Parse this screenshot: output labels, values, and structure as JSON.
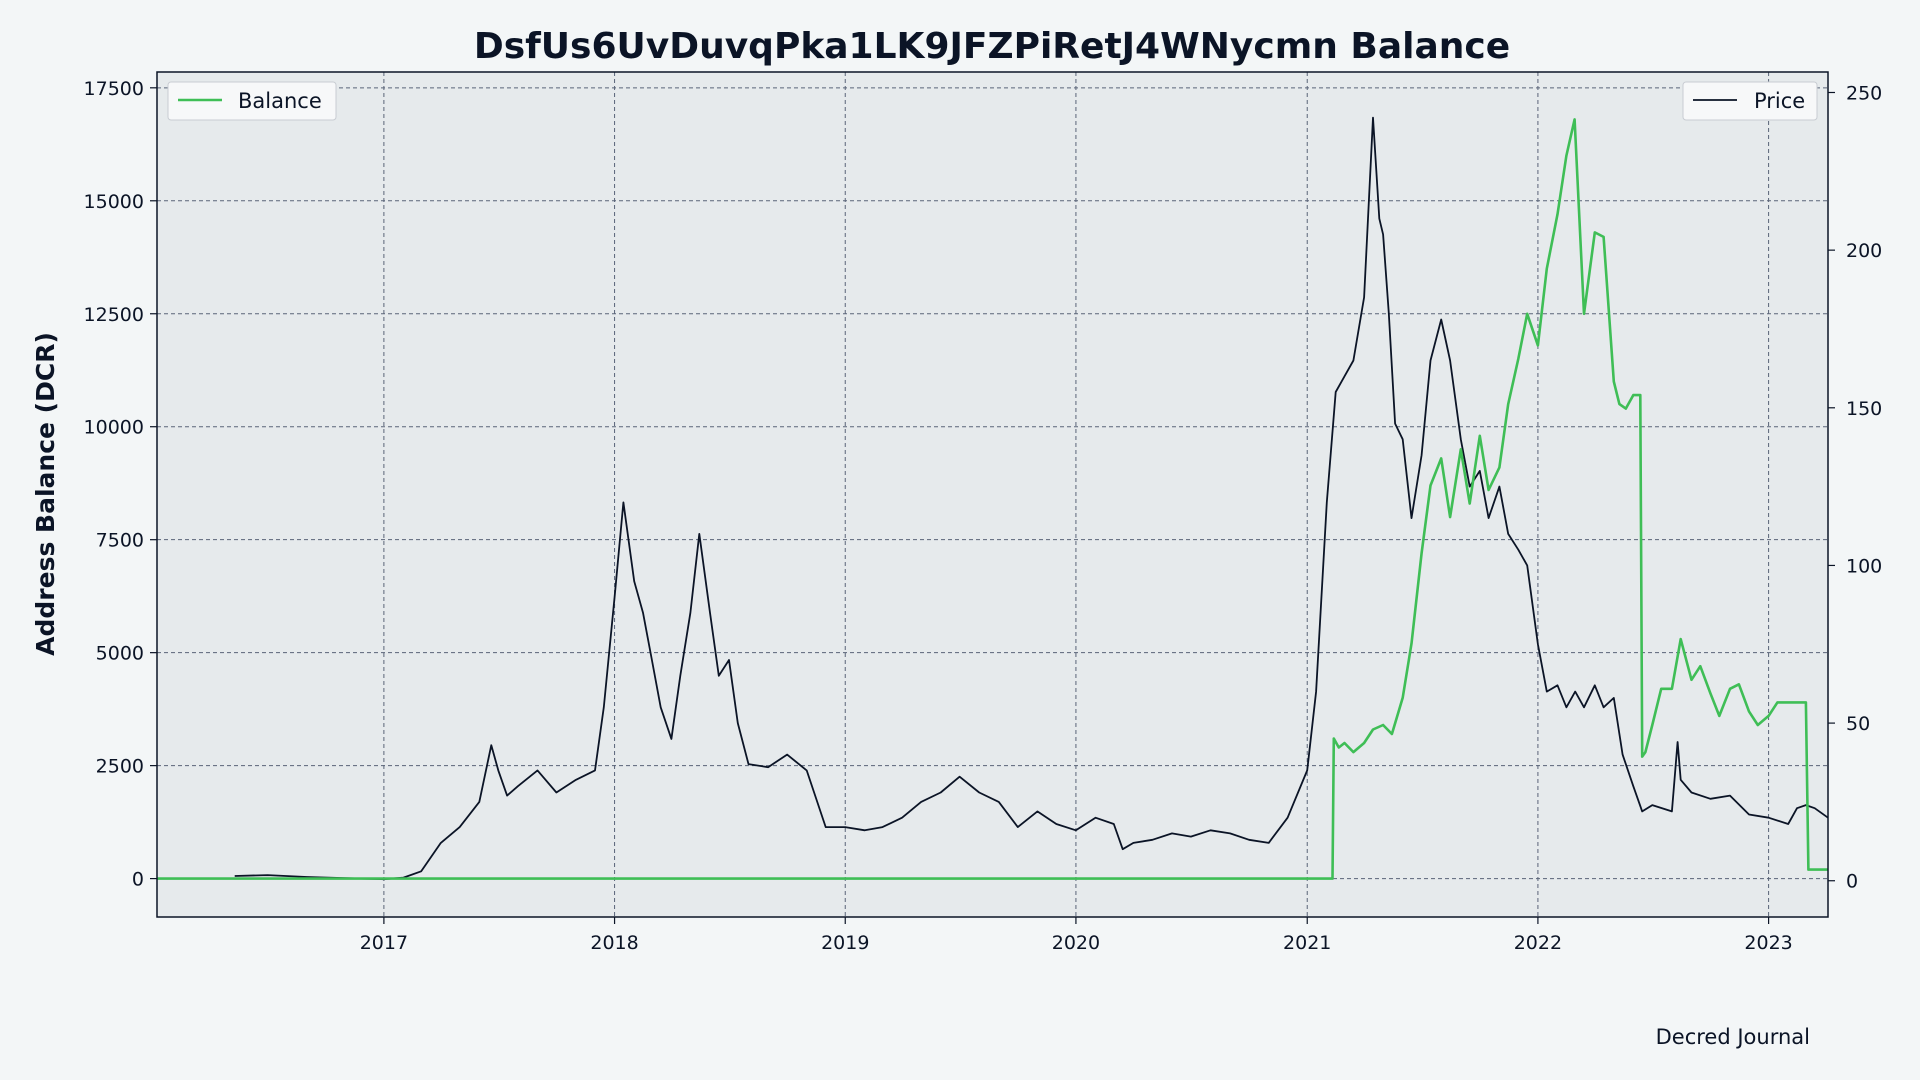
{
  "chart_data": {
    "type": "line",
    "title": "DsfUs6UvDuvqPka1LK9JFZPiRetJ4WNycmn Balance",
    "ylabel": "Address Balance (DCR)",
    "y2label": "",
    "footer": "Decred Journal",
    "xlim": [
      "2016-01-08",
      "2023-04-05"
    ],
    "ylim": [
      -850,
      17850
    ],
    "y2lim": [
      -11.5,
      256.5
    ],
    "x_ticks": [
      "2017",
      "2018",
      "2019",
      "2020",
      "2021",
      "2022",
      "2023"
    ],
    "y_ticks": [
      0,
      2500,
      5000,
      7500,
      10000,
      12500,
      15000,
      17500
    ],
    "y2_ticks": [
      0,
      50,
      100,
      150,
      200,
      250
    ],
    "grid": true,
    "legend": [
      {
        "name": "Balance",
        "placement": "top-left"
      },
      {
        "name": "Price",
        "placement": "top-right"
      }
    ],
    "colors": {
      "balance": "#3fbe56",
      "price": "#0b1426",
      "grid": "#5a6478",
      "plot_bg": "#e6eaec",
      "page_bg": "#f3f6f7"
    },
    "series": [
      {
        "name": "Balance",
        "axis": "left",
        "x": [
          "2016-01-08",
          "2021-02-10",
          "2021-02-12",
          "2021-02-20",
          "2021-03-01",
          "2021-03-15",
          "2021-04-01",
          "2021-04-15",
          "2021-05-01",
          "2021-05-15",
          "2021-06-01",
          "2021-06-15",
          "2021-07-01",
          "2021-07-15",
          "2021-08-01",
          "2021-08-15",
          "2021-09-01",
          "2021-09-15",
          "2021-10-01",
          "2021-10-15",
          "2021-11-01",
          "2021-11-15",
          "2021-12-01",
          "2021-12-15",
          "2022-01-01",
          "2022-01-15",
          "2022-02-01",
          "2022-02-15",
          "2022-02-28",
          "2022-03-15",
          "2022-04-01",
          "2022-04-15",
          "2022-05-01",
          "2022-05-10",
          "2022-05-20",
          "2022-06-01",
          "2022-06-12",
          "2022-06-15",
          "2022-06-20",
          "2022-07-01",
          "2022-07-15",
          "2022-08-01",
          "2022-08-15",
          "2022-09-01",
          "2022-09-15",
          "2022-10-01",
          "2022-10-15",
          "2022-11-01",
          "2022-11-15",
          "2022-12-01",
          "2022-12-15",
          "2023-01-01",
          "2023-01-15",
          "2023-02-01",
          "2023-02-20",
          "2023-03-01",
          "2023-03-05",
          "2023-04-05"
        ],
        "values": [
          0,
          0,
          3100,
          2900,
          3000,
          2800,
          3000,
          3300,
          3400,
          3200,
          4000,
          5200,
          7200,
          8700,
          9300,
          8000,
          9500,
          8300,
          9800,
          8600,
          9100,
          10500,
          11500,
          12500,
          11800,
          13500,
          14700,
          16000,
          16800,
          12500,
          14300,
          14200,
          11000,
          10500,
          10400,
          10700,
          10700,
          2700,
          2800,
          3400,
          4200,
          4200,
          5300,
          4400,
          4700,
          4100,
          3600,
          4200,
          4300,
          3700,
          3400,
          3600,
          3900,
          3900,
          3900,
          3900,
          200,
          200
        ]
      },
      {
        "name": "Price",
        "axis": "right",
        "x": [
          "2016-05-10",
          "2016-07-01",
          "2016-09-01",
          "2016-11-01",
          "2017-01-01",
          "2017-02-01",
          "2017-03-01",
          "2017-04-01",
          "2017-05-01",
          "2017-06-01",
          "2017-06-20",
          "2017-07-01",
          "2017-07-15",
          "2017-08-01",
          "2017-09-01",
          "2017-10-01",
          "2017-11-01",
          "2017-12-01",
          "2017-12-15",
          "2018-01-01",
          "2018-01-15",
          "2018-02-01",
          "2018-02-15",
          "2018-03-01",
          "2018-03-15",
          "2018-04-01",
          "2018-04-15",
          "2018-05-01",
          "2018-05-15",
          "2018-06-01",
          "2018-06-15",
          "2018-07-01",
          "2018-07-15",
          "2018-08-01",
          "2018-09-01",
          "2018-10-01",
          "2018-11-01",
          "2018-12-01",
          "2019-01-01",
          "2019-02-01",
          "2019-03-01",
          "2019-04-01",
          "2019-05-01",
          "2019-06-01",
          "2019-07-01",
          "2019-08-01",
          "2019-09-01",
          "2019-10-01",
          "2019-11-01",
          "2019-12-01",
          "2020-01-01",
          "2020-02-01",
          "2020-03-01",
          "2020-03-15",
          "2020-04-01",
          "2020-05-01",
          "2020-06-01",
          "2020-07-01",
          "2020-08-01",
          "2020-09-01",
          "2020-10-01",
          "2020-11-01",
          "2020-12-01",
          "2021-01-01",
          "2021-01-15",
          "2021-02-01",
          "2021-02-15",
          "2021-03-01",
          "2021-03-15",
          "2021-04-01",
          "2021-04-15",
          "2021-04-25",
          "2021-05-01",
          "2021-05-10",
          "2021-05-20",
          "2021-06-01",
          "2021-06-15",
          "2021-07-01",
          "2021-07-15",
          "2021-08-01",
          "2021-08-15",
          "2021-09-01",
          "2021-09-15",
          "2021-10-01",
          "2021-10-15",
          "2021-11-01",
          "2021-11-15",
          "2021-12-01",
          "2021-12-15",
          "2022-01-01",
          "2022-01-15",
          "2022-02-01",
          "2022-02-15",
          "2022-03-01",
          "2022-03-15",
          "2022-04-01",
          "2022-04-15",
          "2022-05-01",
          "2022-05-15",
          "2022-06-01",
          "2022-06-15",
          "2022-07-01",
          "2022-08-01",
          "2022-08-10",
          "2022-08-15",
          "2022-09-01",
          "2022-10-01",
          "2022-11-01",
          "2022-12-01",
          "2023-01-01",
          "2023-02-01",
          "2023-02-15",
          "2023-03-01",
          "2023-03-15",
          "2023-04-05"
        ],
        "values": [
          1.5,
          1.8,
          1.2,
          0.8,
          0.5,
          1.0,
          3.0,
          12.0,
          17.0,
          25.0,
          43.0,
          35.0,
          27.0,
          30.0,
          35.0,
          28.0,
          32.0,
          35.0,
          55.0,
          90.0,
          120.0,
          95.0,
          85.0,
          70.0,
          55.0,
          45.0,
          65.0,
          85.0,
          110.0,
          85.0,
          65.0,
          70.0,
          50.0,
          37.0,
          36.0,
          40.0,
          35.0,
          17.0,
          17.0,
          16.0,
          17.0,
          20.0,
          25.0,
          28.0,
          33.0,
          28.0,
          25.0,
          17.0,
          22.0,
          18.0,
          16.0,
          20.0,
          18.0,
          10.0,
          12.0,
          13.0,
          15.0,
          14.0,
          16.0,
          15.0,
          13.0,
          12.0,
          20.0,
          35.0,
          60.0,
          120.0,
          155.0,
          160.0,
          165.0,
          185.0,
          242.0,
          210.0,
          205.0,
          180.0,
          145.0,
          140.0,
          115.0,
          135.0,
          165.0,
          178.0,
          165.0,
          140.0,
          125.0,
          130.0,
          115.0,
          125.0,
          110.0,
          105.0,
          100.0,
          75.0,
          60.0,
          62.0,
          55.0,
          60.0,
          55.0,
          62.0,
          55.0,
          58.0,
          40.0,
          30.0,
          22.0,
          24.0,
          22.0,
          44.0,
          32.0,
          28.0,
          26.0,
          27.0,
          21.0,
          20.0,
          18.0,
          23.0,
          24.0,
          23.0,
          20.0
        ]
      }
    ]
  }
}
